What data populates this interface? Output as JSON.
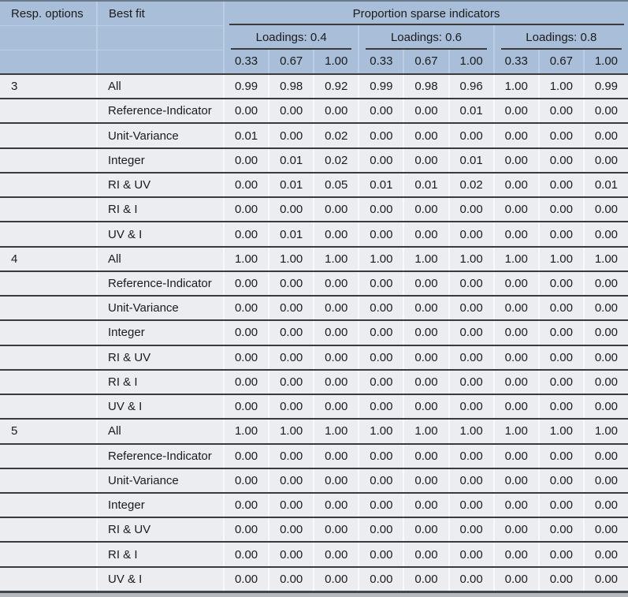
{
  "table": {
    "header": {
      "resp_options": "Resp. options",
      "best_fit": "Best fit",
      "span_title": "Proportion sparse indicators",
      "loading_groups": [
        "Loadings: 0.4",
        "Loadings: 0.6",
        "Loadings: 0.8"
      ],
      "sub_columns": [
        "0.33",
        "0.67",
        "1.00"
      ]
    },
    "groups": [
      {
        "resp": "3",
        "rows": [
          {
            "label": "All",
            "values": [
              "0.99",
              "0.98",
              "0.92",
              "0.99",
              "0.98",
              "0.96",
              "1.00",
              "1.00",
              "0.99"
            ]
          },
          {
            "label": "Reference-Indicator",
            "values": [
              "0.00",
              "0.00",
              "0.00",
              "0.00",
              "0.00",
              "0.01",
              "0.00",
              "0.00",
              "0.00"
            ]
          },
          {
            "label": "Unit-Variance",
            "values": [
              "0.01",
              "0.00",
              "0.02",
              "0.00",
              "0.00",
              "0.00",
              "0.00",
              "0.00",
              "0.00"
            ]
          },
          {
            "label": "Integer",
            "values": [
              "0.00",
              "0.01",
              "0.02",
              "0.00",
              "0.00",
              "0.01",
              "0.00",
              "0.00",
              "0.00"
            ]
          },
          {
            "label": "RI & UV",
            "values": [
              "0.00",
              "0.01",
              "0.05",
              "0.01",
              "0.01",
              "0.02",
              "0.00",
              "0.00",
              "0.01"
            ]
          },
          {
            "label": "RI & I",
            "values": [
              "0.00",
              "0.00",
              "0.00",
              "0.00",
              "0.00",
              "0.00",
              "0.00",
              "0.00",
              "0.00"
            ]
          },
          {
            "label": "UV & I",
            "values": [
              "0.00",
              "0.01",
              "0.00",
              "0.00",
              "0.00",
              "0.00",
              "0.00",
              "0.00",
              "0.00"
            ]
          }
        ]
      },
      {
        "resp": "4",
        "rows": [
          {
            "label": "All",
            "values": [
              "1.00",
              "1.00",
              "1.00",
              "1.00",
              "1.00",
              "1.00",
              "1.00",
              "1.00",
              "1.00"
            ]
          },
          {
            "label": "Reference-Indicator",
            "values": [
              "0.00",
              "0.00",
              "0.00",
              "0.00",
              "0.00",
              "0.00",
              "0.00",
              "0.00",
              "0.00"
            ]
          },
          {
            "label": "Unit-Variance",
            "values": [
              "0.00",
              "0.00",
              "0.00",
              "0.00",
              "0.00",
              "0.00",
              "0.00",
              "0.00",
              "0.00"
            ]
          },
          {
            "label": "Integer",
            "values": [
              "0.00",
              "0.00",
              "0.00",
              "0.00",
              "0.00",
              "0.00",
              "0.00",
              "0.00",
              "0.00"
            ]
          },
          {
            "label": "RI & UV",
            "values": [
              "0.00",
              "0.00",
              "0.00",
              "0.00",
              "0.00",
              "0.00",
              "0.00",
              "0.00",
              "0.00"
            ]
          },
          {
            "label": "RI & I",
            "values": [
              "0.00",
              "0.00",
              "0.00",
              "0.00",
              "0.00",
              "0.00",
              "0.00",
              "0.00",
              "0.00"
            ]
          },
          {
            "label": "UV & I",
            "values": [
              "0.00",
              "0.00",
              "0.00",
              "0.00",
              "0.00",
              "0.00",
              "0.00",
              "0.00",
              "0.00"
            ]
          }
        ]
      },
      {
        "resp": "5",
        "rows": [
          {
            "label": "All",
            "values": [
              "1.00",
              "1.00",
              "1.00",
              "1.00",
              "1.00",
              "1.00",
              "1.00",
              "1.00",
              "1.00"
            ]
          },
          {
            "label": "Reference-Indicator",
            "values": [
              "0.00",
              "0.00",
              "0.00",
              "0.00",
              "0.00",
              "0.00",
              "0.00",
              "0.00",
              "0.00"
            ]
          },
          {
            "label": "Unit-Variance",
            "values": [
              "0.00",
              "0.00",
              "0.00",
              "0.00",
              "0.00",
              "0.00",
              "0.00",
              "0.00",
              "0.00"
            ]
          },
          {
            "label": "Integer",
            "values": [
              "0.00",
              "0.00",
              "0.00",
              "0.00",
              "0.00",
              "0.00",
              "0.00",
              "0.00",
              "0.00"
            ]
          },
          {
            "label": "RI & UV",
            "values": [
              "0.00",
              "0.00",
              "0.00",
              "0.00",
              "0.00",
              "0.00",
              "0.00",
              "0.00",
              "0.00"
            ]
          },
          {
            "label": "RI & I",
            "values": [
              "0.00",
              "0.00",
              "0.00",
              "0.00",
              "0.00",
              "0.00",
              "0.00",
              "0.00",
              "0.00"
            ]
          },
          {
            "label": "UV & I",
            "values": [
              "0.00",
              "0.00",
              "0.00",
              "0.00",
              "0.00",
              "0.00",
              "0.00",
              "0.00",
              "0.00"
            ]
          }
        ]
      }
    ]
  },
  "colors": {
    "header_bg": "#a9bfd9",
    "sep_blue": "#bccee3",
    "line_dark": "#3b3b3b",
    "top_border": "#6b7a8b",
    "row_bg": "#ebedf1",
    "sep_light": "#f8f9fb",
    "text": "#1b1b1b",
    "bottom_strip": "#b6babe"
  }
}
